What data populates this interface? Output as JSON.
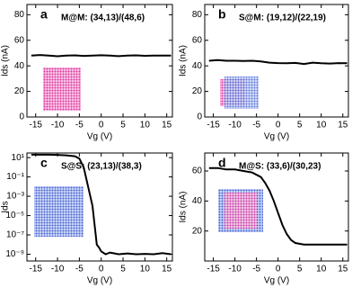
{
  "chart_data": [
    {
      "type": "line",
      "annotations": [
        "a",
        "M@M: (34,13)/(48,6)"
      ],
      "xlabel": "Vg (V)",
      "ylabel": "Ids (nA)",
      "x": [
        -16,
        -14,
        -12,
        -10,
        -8,
        -6,
        -4,
        -2,
        0,
        2,
        4,
        6,
        8,
        10,
        12,
        14,
        16
      ],
      "series": [
        {
          "color": "#000000",
          "values": [
            48,
            48.5,
            48,
            47.5,
            48,
            48.2,
            47.8,
            48,
            48.3,
            48,
            47.6,
            48,
            48.2,
            47.9,
            48,
            48.1,
            48
          ]
        }
      ],
      "xlim": [
        -17,
        16.3
      ],
      "ylim": [
        0,
        88
      ],
      "xticks": [
        -15,
        -10,
        -5,
        0,
        5,
        10,
        15
      ],
      "yticks": [
        0,
        20,
        40,
        60,
        80
      ],
      "log": false
    },
    {
      "type": "line",
      "annotations": [
        "b",
        "S@M: (19,12)/(22,19)"
      ],
      "xlabel": "Vg (V)",
      "ylabel": "Ids (nA)",
      "x": [
        -16,
        -14,
        -12,
        -10,
        -8,
        -6,
        -4,
        -2,
        0,
        2,
        4,
        6,
        8,
        10,
        12,
        14,
        16
      ],
      "series": [
        {
          "color": "#000000",
          "values": [
            44,
            44.5,
            44,
            44,
            43.8,
            44,
            43.5,
            42.5,
            42.2,
            42,
            42.3,
            41.5,
            42.5,
            42,
            41.8,
            42.2,
            42
          ]
        }
      ],
      "xlim": [
        -17,
        16.3
      ],
      "ylim": [
        0,
        88
      ],
      "xticks": [
        -15,
        -10,
        -5,
        0,
        5,
        10,
        15
      ],
      "yticks": [
        0,
        20,
        40,
        60,
        80
      ],
      "log": false
    },
    {
      "type": "line",
      "annotations": [
        "c",
        "S@S: (23,13)/(38,3)"
      ],
      "xlabel": "Vg (V)",
      "ylabel": "Ids",
      "x": [
        -16,
        -14,
        -12,
        -10,
        -8,
        -6,
        -5,
        -4,
        -3,
        -2,
        -1.5,
        -1,
        -0.5,
        0,
        1,
        2,
        4,
        6,
        8,
        10,
        12,
        14,
        16
      ],
      "series": [
        {
          "color": "#000000",
          "values": [
            20,
            20,
            20,
            19,
            17,
            14,
            8,
            1,
            0.01,
            0.0001,
            1e-06,
            1e-08,
            5e-09,
            2e-09,
            1e-09,
            1.5e-09,
            1e-09,
            1.2e-09,
            1e-09,
            1.1e-09,
            1e-09,
            1.3e-09,
            1e-09
          ]
        }
      ],
      "xlim": [
        -17,
        16.3
      ],
      "ylim": [
        2e-10,
        30
      ],
      "log": true,
      "xticks": [
        -15,
        -10,
        -5,
        0,
        5,
        10,
        15
      ],
      "yticks": [
        {
          "value": 10,
          "label": "10¹"
        },
        {
          "value": 0.1,
          "label": "10⁻¹"
        },
        {
          "value": 0.001,
          "label": "10⁻³"
        },
        {
          "value": 1e-05,
          "label": "10⁻⁵"
        },
        {
          "value": 1e-07,
          "label": "10⁻⁷"
        },
        {
          "value": 1e-09,
          "label": "10⁻⁹"
        }
      ]
    },
    {
      "type": "line",
      "annotations": [
        "d",
        "M@S: (33,6)/(30,23)"
      ],
      "xlabel": "Vg (V)",
      "ylabel": "Ids (nA)",
      "x": [
        -16,
        -14,
        -12,
        -10,
        -8,
        -6,
        -4,
        -3,
        -2,
        -1,
        0,
        1,
        2,
        3,
        4,
        6,
        8,
        10,
        12,
        14,
        16
      ],
      "series": [
        {
          "color": "#000000",
          "values": [
            62,
            62,
            61,
            61,
            60,
            59,
            56,
            52,
            47,
            40,
            32,
            24,
            18,
            14,
            12,
            11,
            11,
            11,
            11,
            11,
            11
          ]
        }
      ],
      "xlim": [
        -17,
        16.3
      ],
      "ylim": [
        0,
        72
      ],
      "xticks": [
        -15,
        -10,
        -5,
        0,
        5,
        10,
        15
      ],
      "yticks": [
        20,
        40,
        60
      ],
      "log": false
    }
  ]
}
